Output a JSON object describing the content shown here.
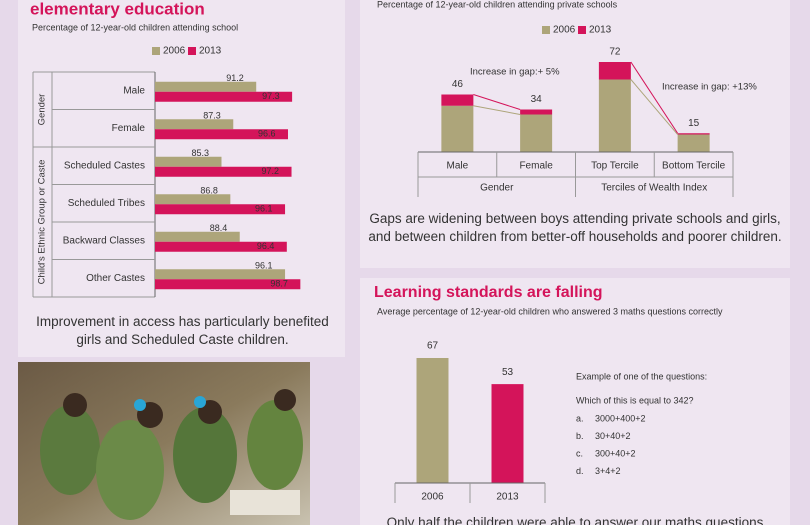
{
  "chart_data": [
    {
      "type": "hbar",
      "title": "elementary education",
      "subtitle": "Percentage of 12-year-old children attending school",
      "categories": [
        "Male",
        "Female",
        "Scheduled Castes",
        "Scheduled Tribes",
        "Backward Classes",
        "Other Castes"
      ],
      "groups": [
        {
          "label": "Gender",
          "size": 2
        },
        {
          "label": "Child's Ethnic Group or Caste",
          "size": 4
        }
      ],
      "series": [
        {
          "name": "2006",
          "color": "#ada57a",
          "values": [
            91.2,
            87.3,
            85.3,
            86.8,
            88.4,
            96.1
          ]
        },
        {
          "name": "2013",
          "color": "#d4145a",
          "values": [
            97.3,
            96.6,
            97.2,
            96.1,
            96.4,
            98.7
          ]
        }
      ],
      "xlim": [
        74,
        100
      ],
      "caption": "Improvement in access has particularly benefited girls and Scheduled Caste children."
    },
    {
      "type": "stacked_bar",
      "subtitle": "Percentage of 12-year-old children attending private schools",
      "categories": [
        "Male",
        "Female",
        "Top Tercile",
        "Bottom Tercile"
      ],
      "groups": [
        {
          "label": "Gender",
          "size": 2
        },
        {
          "label": "Terciles of Wealth Index",
          "size": 2
        }
      ],
      "series": [
        {
          "name": "2006",
          "color": "#ada57a",
          "values": [
            37,
            30,
            58,
            14
          ]
        },
        {
          "name": "2013",
          "color": "#d4145a",
          "values": [
            9,
            4,
            14,
            1
          ]
        }
      ],
      "totals": [
        46,
        34,
        72,
        15
      ],
      "ylim": [
        0,
        80
      ],
      "annotations": [
        "Increase in gap:+ 5%",
        "Increase in gap: +13%"
      ],
      "caption": "Gaps are widening between boys attending private schools and girls, and between children from better-off households and poorer children."
    },
    {
      "type": "bar",
      "title": "Learning standards are falling",
      "subtitle": "Average percentage of 12-year-old children who answered 3 maths questions correctly",
      "categories": [
        "2006",
        "2013"
      ],
      "values": [
        67,
        53
      ],
      "colors": [
        "#ada57a",
        "#d4145a"
      ],
      "ylim": [
        0,
        70
      ],
      "question": {
        "intro": "Example of one of the questions:",
        "text": "Which of this is equal to 342?",
        "options": [
          {
            "letter": "a.",
            "text": "3000+400+2"
          },
          {
            "letter": "b.",
            "text": "30+40+2"
          },
          {
            "letter": "c.",
            "text": "300+40+2"
          },
          {
            "letter": "d.",
            "text": "3+4+2"
          }
        ]
      },
      "caption": "Only half the children were able to answer our maths questions"
    }
  ]
}
